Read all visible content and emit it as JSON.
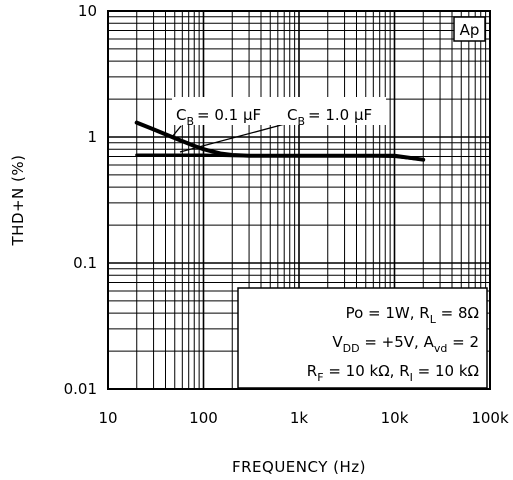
{
  "chart_data": {
    "type": "line",
    "xlabel": "FREQUENCY (Hz)",
    "ylabel": "THD+N (%)",
    "x_scale": "log",
    "y_scale": "log",
    "xlim": [
      20,
      100000
    ],
    "ylim": [
      0.01,
      10
    ],
    "x_tick_values": [
      10,
      100,
      1000,
      10000,
      100000
    ],
    "x_tick_labels": [
      "10",
      "100",
      "1k",
      "10k",
      "100k"
    ],
    "y_tick_values": [
      0.01,
      0.1,
      1,
      10
    ],
    "y_tick_labels": [
      "0.01",
      "0.1",
      "1",
      "10"
    ],
    "grid": true,
    "badge": "Ap",
    "series": [
      {
        "label_main": "C",
        "label_sub": "B",
        "label_value": "= 0.1 μF",
        "x": [
          20,
          30,
          50,
          80,
          100,
          150,
          200,
          300,
          500,
          1000,
          5000,
          10000,
          20000
        ],
        "y": [
          1.3,
          1.15,
          0.98,
          0.85,
          0.8,
          0.74,
          0.72,
          0.71,
          0.71,
          0.71,
          0.71,
          0.71,
          0.66
        ]
      },
      {
        "label_main": "C",
        "label_sub": "B",
        "label_value": "= 1.0 μF",
        "x": [
          20,
          50,
          100,
          200,
          500,
          1000,
          2000,
          5000,
          10000,
          20000
        ],
        "y": [
          0.72,
          0.72,
          0.72,
          0.71,
          0.71,
          0.71,
          0.71,
          0.71,
          0.7,
          0.66
        ]
      }
    ],
    "conditions": [
      [
        {
          "t": "Po = 1W,  R"
        },
        {
          "t": "L",
          "sub": true
        },
        {
          "t": " = 8Ω"
        }
      ],
      [
        {
          "t": "V"
        },
        {
          "t": "DD",
          "sub": true
        },
        {
          "t": " = +5V,  A"
        },
        {
          "t": "vd",
          "sub": true
        },
        {
          "t": " = 2"
        }
      ],
      [
        {
          "t": "R"
        },
        {
          "t": "F",
          "sub": true
        },
        {
          "t": " = 10 kΩ,  R"
        },
        {
          "t": "I",
          "sub": true
        },
        {
          "t": " = 10 kΩ"
        }
      ]
    ]
  }
}
